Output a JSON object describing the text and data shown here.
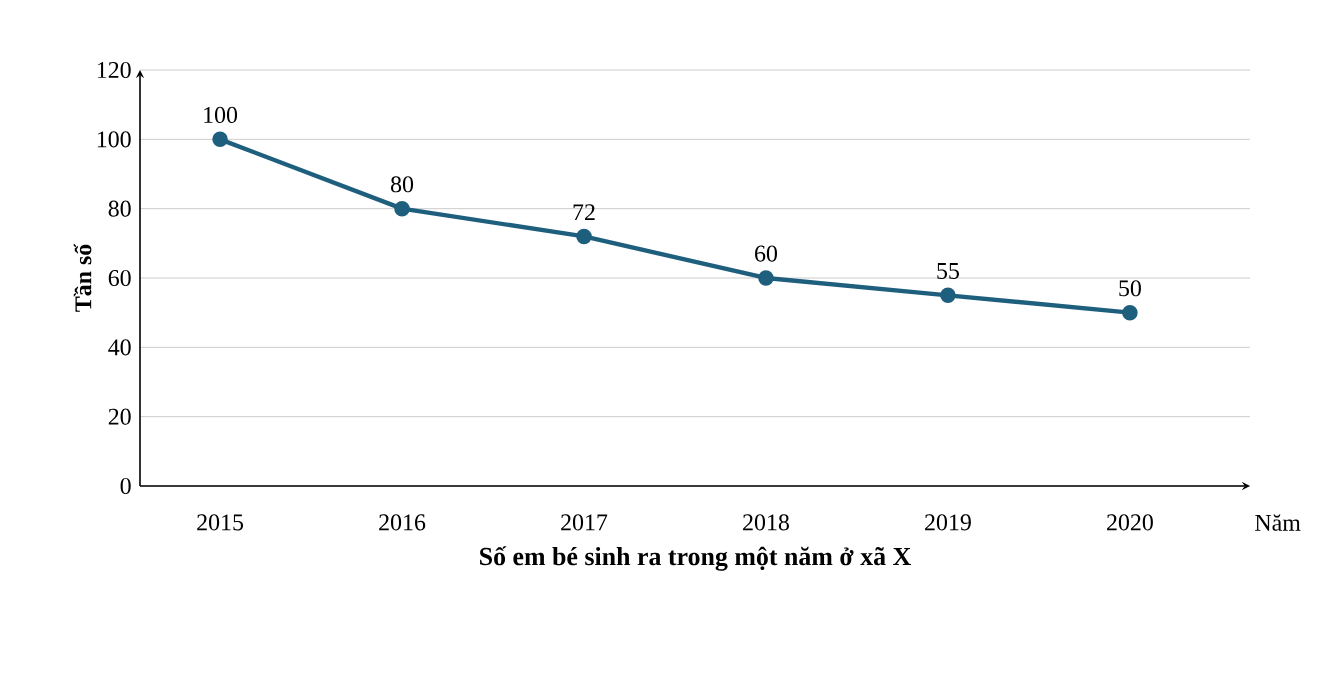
{
  "chart_data": {
    "type": "line",
    "title": "Số em bé sinh ra trong một năm ở xã X",
    "xlabel": "Năm",
    "ylabel": "Tần số",
    "categories": [
      "2015",
      "2016",
      "2017",
      "2018",
      "2019",
      "2020"
    ],
    "values": [
      100,
      80,
      72,
      60,
      55,
      50
    ],
    "color": "#1f5f7e",
    "ylim": [
      0,
      120
    ],
    "yticks": [
      0,
      20,
      40,
      60,
      80,
      100,
      120
    ],
    "grid": "y",
    "marker": "circle",
    "data_labels": true
  }
}
